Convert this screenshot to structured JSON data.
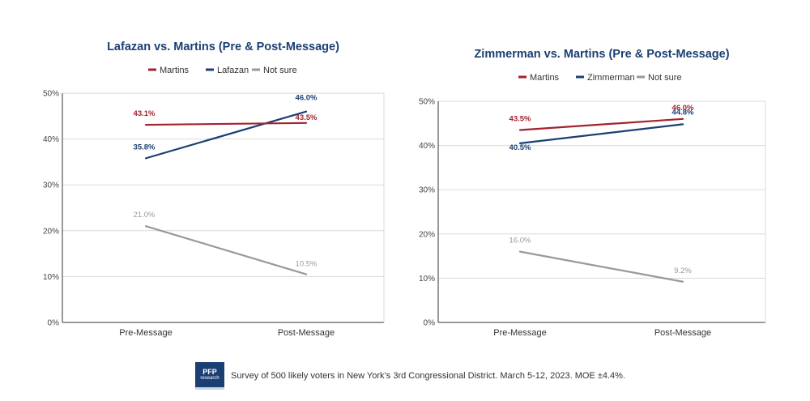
{
  "colors": {
    "martins": "#a3232e",
    "other": "#1b3f73",
    "not_sure": "#999999"
  },
  "chart_data": [
    {
      "type": "line",
      "title": "Lafazan vs. Martins (Pre & Post-Message)",
      "categories": [
        "Pre-Message",
        "Post-Message"
      ],
      "ylim": [
        0,
        50
      ],
      "yticks": [
        "0%",
        "10%",
        "20%",
        "30%",
        "40%",
        "50%"
      ],
      "legend_position": "top",
      "series": [
        {
          "name": "Martins",
          "values": [
            43.1,
            43.5
          ],
          "labels": [
            "43.1%",
            "43.5%"
          ],
          "color": "#a3232e"
        },
        {
          "name": "Lafazan",
          "values": [
            35.8,
            46.0
          ],
          "labels": [
            "35.8%",
            "46.0%"
          ],
          "color": "#1b3f73"
        },
        {
          "name": "Not sure",
          "values": [
            21.0,
            10.5
          ],
          "labels": [
            "21.0%",
            "10.5%"
          ],
          "color": "#999999"
        }
      ]
    },
    {
      "type": "line",
      "title": "Zimmerman vs. Martins (Pre & Post-Message)",
      "categories": [
        "Pre-Message",
        "Post-Message"
      ],
      "ylim": [
        0,
        50
      ],
      "yticks": [
        "0%",
        "10%",
        "20%",
        "30%",
        "40%",
        "50%"
      ],
      "legend_position": "top",
      "series": [
        {
          "name": "Martins",
          "values": [
            43.5,
            46.0
          ],
          "labels": [
            "43.5%",
            "46.0%"
          ],
          "color": "#a3232e"
        },
        {
          "name": "Zimmerman",
          "values": [
            40.5,
            44.8
          ],
          "labels": [
            "40.5%",
            "44.8%"
          ],
          "color": "#1b3f73"
        },
        {
          "name": "Not sure",
          "values": [
            16.0,
            9.2
          ],
          "labels": [
            "16.0%",
            "9.2%"
          ],
          "color": "#999999"
        }
      ]
    }
  ],
  "footer": {
    "logo_line1": "PFP",
    "logo_line2": "research",
    "note": "Survey of 500 likely voters in New York’s 3rd Congressional District. March 5-12, 2023. MOE ±4.4%."
  }
}
